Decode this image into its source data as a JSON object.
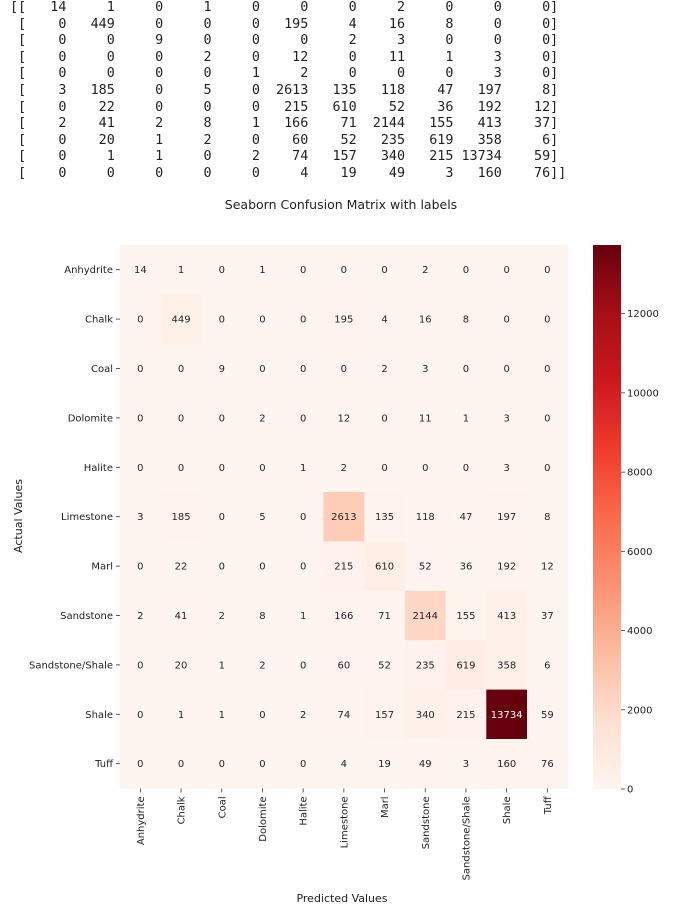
{
  "console_output": [
    "[[   14     1     0     1     0     0     0     2     0     0     0]",
    " [    0   449     0     0     0   195     4    16     8     0     0]",
    " [    0     0     9     0     0     0     2     3     0     0     0]",
    " [    0     0     0     2     0    12     0    11     1     3     0]",
    " [    0     0     0     0     1     2     0     0     0     3     0]",
    " [    3   185     0     5     0  2613   135   118    47   197     8]",
    " [    0    22     0     0     0   215   610    52    36   192    12]",
    " [    2    41     2     8     1   166    71  2144   155   413    37]",
    " [    0    20     1     2     0    60    52   235   619   358     6]",
    " [    0     1     1     0     2    74   157   340   215 13734    59]",
    " [    0     0     0     0     0     4    19    49     3   160    76]]"
  ],
  "chart_data": {
    "type": "heatmap",
    "title": "Seaborn Confusion Matrix with labels",
    "xlabel": "Predicted Values",
    "ylabel": "Actual Values",
    "x_categories": [
      "Anhydrite",
      "Chalk",
      "Coal",
      "Dolomite",
      "Halite",
      "Limestone",
      "Marl",
      "Sandstone",
      "Sandstone/Shale",
      "Shale",
      "Tuff"
    ],
    "y_categories": [
      "Anhydrite",
      "Chalk",
      "Coal",
      "Dolomite",
      "Halite",
      "Limestone",
      "Marl",
      "Sandstone",
      "Sandstone/Shale",
      "Shale",
      "Tuff"
    ],
    "values": [
      [
        14,
        1,
        0,
        1,
        0,
        0,
        0,
        2,
        0,
        0,
        0
      ],
      [
        0,
        449,
        0,
        0,
        0,
        195,
        4,
        16,
        8,
        0,
        0
      ],
      [
        0,
        0,
        9,
        0,
        0,
        0,
        2,
        3,
        0,
        0,
        0
      ],
      [
        0,
        0,
        0,
        2,
        0,
        12,
        0,
        11,
        1,
        3,
        0
      ],
      [
        0,
        0,
        0,
        0,
        1,
        2,
        0,
        0,
        0,
        3,
        0
      ],
      [
        3,
        185,
        0,
        5,
        0,
        2613,
        135,
        118,
        47,
        197,
        8
      ],
      [
        0,
        22,
        0,
        0,
        0,
        215,
        610,
        52,
        36,
        192,
        12
      ],
      [
        2,
        41,
        2,
        8,
        1,
        166,
        71,
        2144,
        155,
        413,
        37
      ],
      [
        0,
        20,
        1,
        2,
        0,
        60,
        52,
        235,
        619,
        358,
        6
      ],
      [
        0,
        1,
        1,
        0,
        2,
        74,
        157,
        340,
        215,
        13734,
        59
      ],
      [
        0,
        0,
        0,
        0,
        0,
        4,
        19,
        49,
        3,
        160,
        76
      ]
    ],
    "colormap": "Reds",
    "colormap_stops": [
      "#fff5f0",
      "#fee0d2",
      "#fcbba1",
      "#fc9272",
      "#fb6a4a",
      "#ef3b2c",
      "#cb181d",
      "#a50f15",
      "#67000d"
    ],
    "annotation_text_colors": {
      "light_cell": "#262626",
      "dark_cell": "#ffffff"
    },
    "colorbar": {
      "vmin": 0,
      "vmax": 13734,
      "ticks": [
        0,
        2000,
        4000,
        6000,
        8000,
        10000,
        12000
      ],
      "tick_labels": [
        "0",
        "2000",
        "4000",
        "6000",
        "8000",
        "10000",
        "12000"
      ]
    },
    "grid": false,
    "legend": "colorbar-right"
  }
}
